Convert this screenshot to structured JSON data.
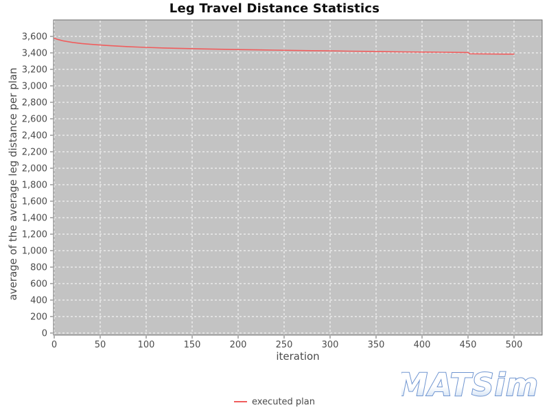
{
  "title": "Leg Travel Distance Statistics",
  "colors": {
    "plot_bg": "#c3c3c3",
    "plot_border": "#6e6e6e",
    "grid": "#ffffff",
    "series": "#f05c5c",
    "tick": "#666666",
    "tick_label": "#4a4a4a",
    "axis_label": "#4a4a4a",
    "title_text": "#0d0d0d",
    "logo_stroke": "#6e94d0",
    "logo_fill_top": "#ffffff",
    "logo_fill_bottom": "#bdd4ef"
  },
  "logo": {
    "text": "MATSim"
  },
  "legend": {
    "items": [
      {
        "label": "executed plan",
        "color": "#f05c5c"
      }
    ]
  },
  "chart_data": {
    "type": "line",
    "title": "Leg Travel Distance Statistics",
    "xlabel": "iteration",
    "ylabel": "average of the average leg distance per plan",
    "xlim": [
      0,
      530
    ],
    "ylim": [
      0,
      3800
    ],
    "xticks": [
      0,
      50,
      100,
      150,
      200,
      250,
      300,
      350,
      400,
      450,
      500
    ],
    "yticks": [
      0,
      200,
      400,
      600,
      800,
      1000,
      1200,
      1400,
      1600,
      1800,
      2000,
      2200,
      2400,
      2600,
      2800,
      3000,
      3200,
      3400,
      3600
    ],
    "grid": true,
    "grid_style": "white dashed on gray plot background",
    "legend_position": "bottom-center",
    "series": [
      {
        "name": "executed plan",
        "color": "#f05c5c",
        "points": [
          [
            0,
            3578
          ],
          [
            3,
            3566
          ],
          [
            6,
            3557
          ],
          [
            10,
            3545
          ],
          [
            20,
            3527
          ],
          [
            30,
            3513
          ],
          [
            40,
            3503
          ],
          [
            50,
            3495
          ],
          [
            60,
            3488
          ],
          [
            70,
            3482
          ],
          [
            80,
            3476
          ],
          [
            90,
            3471
          ],
          [
            100,
            3467
          ],
          [
            120,
            3459
          ],
          [
            140,
            3453
          ],
          [
            160,
            3448
          ],
          [
            180,
            3444
          ],
          [
            200,
            3440
          ],
          [
            220,
            3437
          ],
          [
            240,
            3433
          ],
          [
            260,
            3430
          ],
          [
            280,
            3427
          ],
          [
            300,
            3424
          ],
          [
            320,
            3421
          ],
          [
            340,
            3418
          ],
          [
            360,
            3415
          ],
          [
            380,
            3412
          ],
          [
            400,
            3410
          ],
          [
            420,
            3408
          ],
          [
            440,
            3406
          ],
          [
            450,
            3405
          ],
          [
            452,
            3389
          ],
          [
            460,
            3388
          ],
          [
            470,
            3387
          ],
          [
            480,
            3386
          ],
          [
            490,
            3385
          ],
          [
            500,
            3385
          ]
        ]
      }
    ]
  }
}
